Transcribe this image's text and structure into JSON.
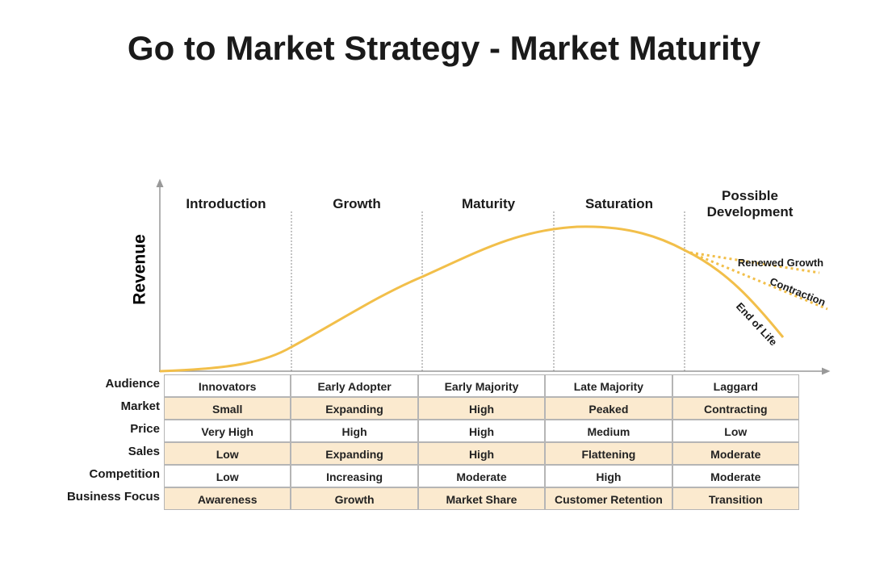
{
  "title": "Go to Market Strategy - Market Maturity",
  "y_axis_label": "Revenue",
  "phases": [
    "Introduction",
    "Growth",
    "Maturity",
    "Saturation",
    "Possible Development"
  ],
  "branches": [
    "Renewed Growth",
    "Contraction",
    "End of Life"
  ],
  "table": {
    "row_headers": [
      "Audience",
      "Market",
      "Price",
      "Sales",
      "Competition",
      "Business Focus"
    ],
    "rows": [
      [
        "Innovators",
        "Early Adopter",
        "Early Majority",
        "Late Majority",
        "Laggard"
      ],
      [
        "Small",
        "Expanding",
        "High",
        "Peaked",
        "Contracting"
      ],
      [
        "Very High",
        "High",
        "High",
        "Medium",
        "Low"
      ],
      [
        "Low",
        "Expanding",
        "High",
        "Flattening",
        "Moderate"
      ],
      [
        "Low",
        "Increasing",
        "Moderate",
        "High",
        "Moderate"
      ],
      [
        "Awareness",
        "Growth",
        "Market Share",
        "Customer Retention",
        "Transition"
      ]
    ]
  }
}
